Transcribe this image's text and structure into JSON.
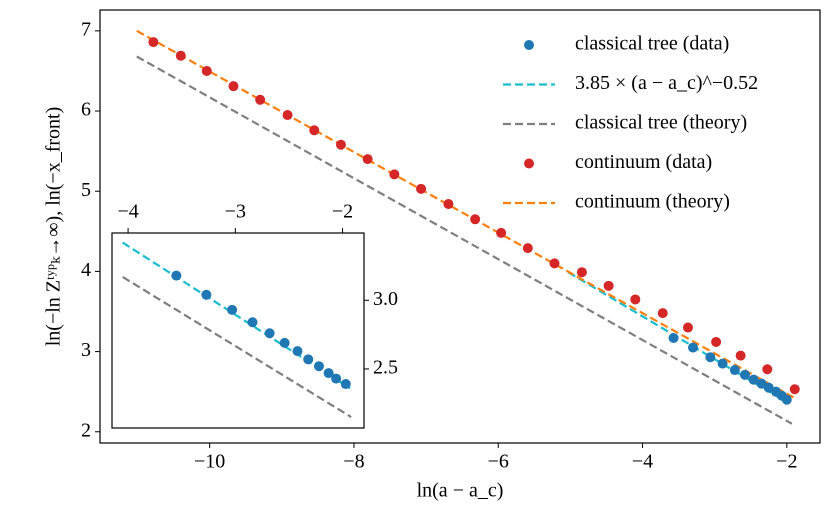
{
  "chart_data": [
    {
      "type": "scatter",
      "xlabel": "ln(a − a_c)",
      "ylabel": "ln(−ln Zᵗʸᵖₖ→∞), ln(−x_front)",
      "xlim": [
        -11.52,
        -1.54
      ],
      "ylim": [
        1.86,
        7.26
      ],
      "xticks": [
        {
          "value": -10,
          "label": "−10"
        },
        {
          "value": -8,
          "label": "−8"
        },
        {
          "value": -6,
          "label": "−6"
        },
        {
          "value": -4,
          "label": "−4"
        },
        {
          "value": -2,
          "label": "−2"
        }
      ],
      "yticks": [
        2,
        3,
        4,
        5,
        6,
        7
      ],
      "xaxis_position": "bottom",
      "yaxis_position": "left",
      "legend": "upper right",
      "series": [
        {
          "name": "classical tree (data)",
          "color": "#1f77b4",
          "style": "marker",
          "x": [
            -3.57,
            -3.3,
            -3.06,
            -2.89,
            -2.72,
            -2.58,
            -2.46,
            -2.35,
            -2.25,
            -2.15,
            -2.07,
            -2.0
          ],
          "values": [
            3.17,
            3.05,
            2.93,
            2.85,
            2.77,
            2.71,
            2.65,
            2.6,
            2.55,
            2.5,
            2.45,
            2.4
          ]
        },
        {
          "name": "3.85 × (a − a_c)^−0.52",
          "color": "#17becf",
          "style": "dashed",
          "x": [
            -5.03,
            -2.0
          ],
          "values": [
            3.99,
            2.37
          ]
        },
        {
          "name": "classical tree (theory)",
          "color": "#7f7f7f",
          "style": "dashed",
          "x": [
            -11.01,
            -1.93
          ],
          "values": [
            6.68,
            2.1
          ]
        },
        {
          "name": "continuum (data)",
          "color": "#d62728",
          "style": "marker",
          "x": [
            -10.78,
            -10.4,
            -10.04,
            -9.67,
            -9.3,
            -8.92,
            -8.55,
            -8.18,
            -7.81,
            -7.44,
            -7.07,
            -6.69,
            -6.32,
            -5.96,
            -5.59,
            -5.22,
            -4.84,
            -4.47,
            -4.1,
            -3.72,
            -3.37,
            -2.98,
            -2.64,
            -2.27,
            -1.89
          ],
          "values": [
            6.86,
            6.69,
            6.5,
            6.31,
            6.14,
            5.95,
            5.76,
            5.58,
            5.4,
            5.21,
            5.03,
            4.84,
            4.65,
            4.48,
            4.29,
            4.1,
            3.99,
            3.82,
            3.65,
            3.48,
            3.3,
            3.12,
            2.95,
            2.78,
            2.53
          ]
        },
        {
          "name": "continuum (theory)",
          "color": "#ff7f0e",
          "style": "dashed",
          "x": [
            -11.01,
            -1.89
          ],
          "values": [
            7.0,
            2.42
          ]
        }
      ]
    },
    {
      "type": "scatter",
      "xlim": [
        -4.15,
        -1.8
      ],
      "ylim": [
        2.07,
        3.49
      ],
      "xticks": [
        {
          "value": -4,
          "label": "−4"
        },
        {
          "value": -3,
          "label": "−3"
        },
        {
          "value": -2,
          "label": "−2"
        }
      ],
      "yticks": [
        {
          "value": 2.5,
          "label": "2.5"
        },
        {
          "value": 3.0,
          "label": "3.0"
        }
      ],
      "xaxis_position": "top",
      "yaxis_position": "right",
      "series": [
        {
          "color": "#17becf",
          "style": "dashed",
          "x": [
            -4.05,
            -1.93
          ],
          "values": [
            3.42,
            2.36
          ]
        },
        {
          "color": "#7f7f7f",
          "style": "dashed",
          "x": [
            -4.05,
            -1.92
          ],
          "values": [
            3.17,
            2.15
          ]
        },
        {
          "color": "#1f77b4",
          "style": "marker",
          "x": [
            -3.55,
            -3.27,
            -3.03,
            -2.84,
            -2.68,
            -2.54,
            -2.42,
            -2.32,
            -2.22,
            -2.13,
            -2.06,
            -1.97
          ],
          "values": [
            3.18,
            3.04,
            2.93,
            2.84,
            2.76,
            2.69,
            2.63,
            2.57,
            2.52,
            2.47,
            2.43,
            2.39
          ]
        }
      ]
    }
  ]
}
